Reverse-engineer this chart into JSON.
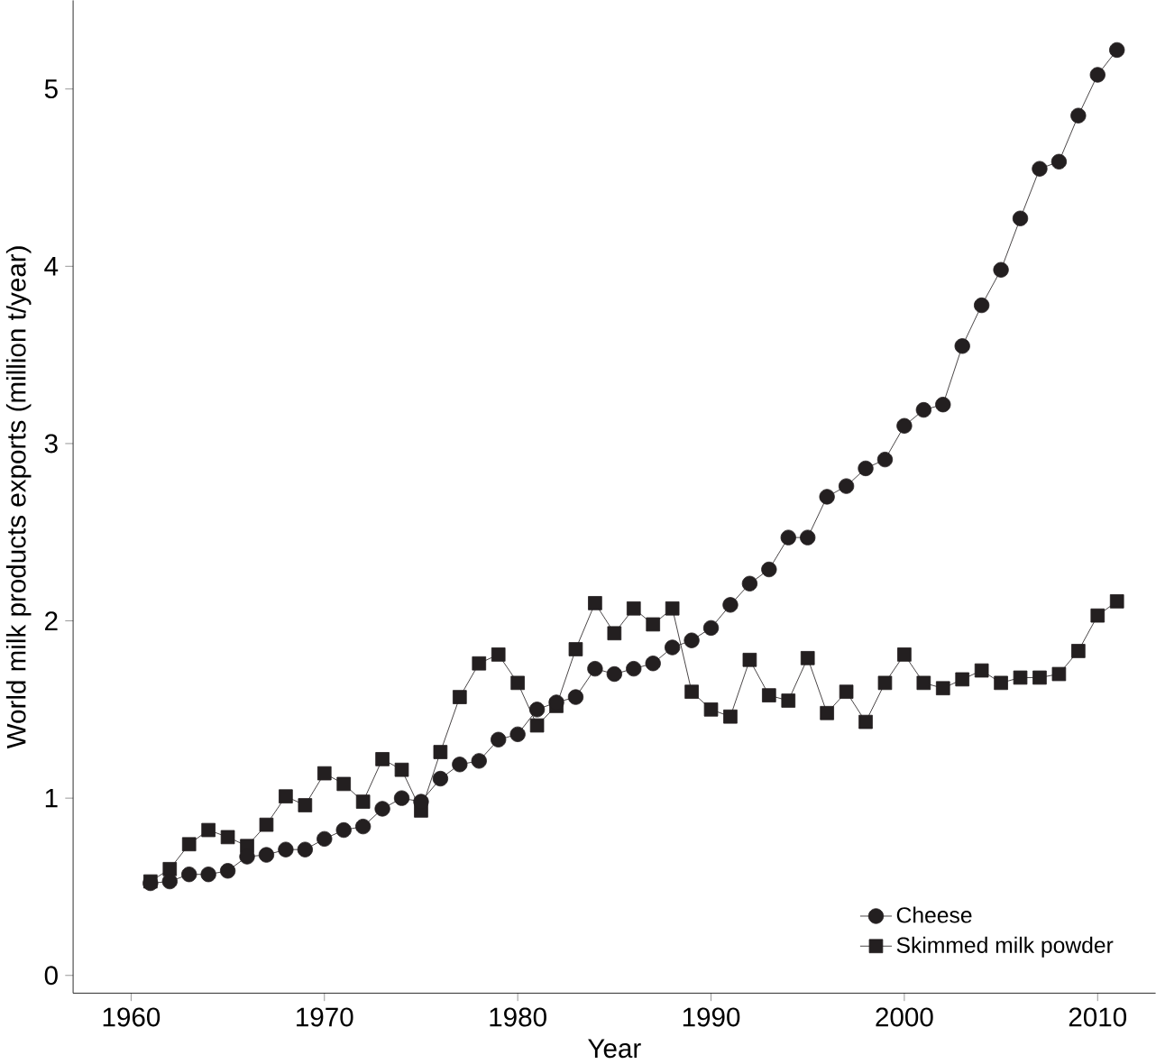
{
  "chart_data": {
    "type": "line",
    "xlabel": "Year",
    "ylabel": "World milk products exports (million t/year)",
    "x": [
      1961,
      1962,
      1963,
      1964,
      1965,
      1966,
      1967,
      1968,
      1969,
      1970,
      1971,
      1972,
      1973,
      1974,
      1975,
      1976,
      1977,
      1978,
      1979,
      1980,
      1981,
      1982,
      1983,
      1984,
      1985,
      1986,
      1987,
      1988,
      1989,
      1990,
      1991,
      1992,
      1993,
      1994,
      1995,
      1996,
      1997,
      1998,
      1999,
      2000,
      2001,
      2002,
      2003,
      2004,
      2005,
      2006,
      2007,
      2008,
      2009,
      2010,
      2011
    ],
    "series": [
      {
        "name": "Cheese",
        "color": "#231f20",
        "marker": "circle",
        "values": [
          0.52,
          0.53,
          0.57,
          0.57,
          0.59,
          0.67,
          0.68,
          0.71,
          0.71,
          0.77,
          0.82,
          0.84,
          0.94,
          1.0,
          0.98,
          1.11,
          1.19,
          1.21,
          1.33,
          1.36,
          1.5,
          1.54,
          1.57,
          1.73,
          1.7,
          1.73,
          1.76,
          1.85,
          1.89,
          1.96,
          2.09,
          2.21,
          2.29,
          2.47,
          2.47,
          2.7,
          2.76,
          2.86,
          2.91,
          3.1,
          3.19,
          3.22,
          3.55,
          3.78,
          3.98,
          4.27,
          4.55,
          4.59,
          4.85,
          5.08,
          5.22
        ]
      },
      {
        "name": "Skimmed milk powder",
        "color": "#231f20",
        "marker": "square",
        "values": [
          0.53,
          0.6,
          0.74,
          0.82,
          0.78,
          0.73,
          0.85,
          1.01,
          0.96,
          1.14,
          1.08,
          0.98,
          1.22,
          1.16,
          0.93,
          1.26,
          1.57,
          1.76,
          1.81,
          1.65,
          1.41,
          1.52,
          1.84,
          2.1,
          1.93,
          2.07,
          1.98,
          2.07,
          1.6,
          1.5,
          1.46,
          1.78,
          1.58,
          1.55,
          1.79,
          1.48,
          1.6,
          1.43,
          1.65,
          1.81,
          1.65,
          1.62,
          1.67,
          1.72,
          1.65,
          1.68,
          1.68,
          1.7,
          1.83,
          2.03,
          2.11
        ]
      }
    ],
    "xlim": [
      1957,
      2013
    ],
    "ylim": [
      -0.1,
      5.5
    ],
    "xticks": [
      1960,
      1970,
      1980,
      1990,
      2000,
      2010
    ],
    "yticks": [
      0,
      1,
      2,
      3,
      4,
      5
    ],
    "legend": "bottom right",
    "grid": false,
    "line_style": "solid"
  }
}
